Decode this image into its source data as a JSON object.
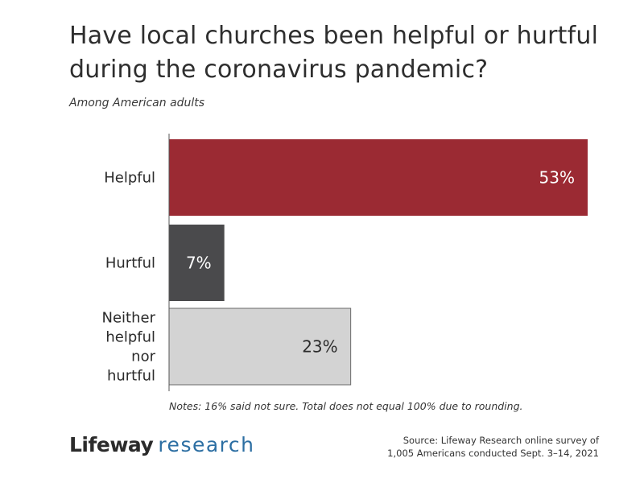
{
  "title": "Have local churches been helpful or hurtful during the coronavirus pandemic?",
  "subtitle": "Among American adults",
  "notes": "Notes: 16% said not sure. Total does not equal 100% due to rounding.",
  "logo": {
    "brand": "Lifeway",
    "sub": "research"
  },
  "source": {
    "line1": "Source: Lifeway Research online survey of",
    "line2": "1,005 Americans conducted Sept. 3–14, 2021"
  },
  "chart_data": {
    "type": "bar",
    "orientation": "horizontal",
    "categories": [
      [
        "Helpful"
      ],
      [
        "Hurtful"
      ],
      [
        "Neither",
        "helpful",
        "nor",
        "hurtful"
      ]
    ],
    "values": [
      53,
      7,
      23
    ],
    "value_labels": [
      "53%",
      "7%",
      "23%"
    ],
    "colors": [
      "#9b2a33",
      "#4a4a4c",
      "#d3d3d3"
    ],
    "label_colors": [
      "#ffffff",
      "#ffffff",
      "#2b2b2b"
    ],
    "xlim": [
      0,
      53
    ],
    "grid": false,
    "legend": "none"
  }
}
